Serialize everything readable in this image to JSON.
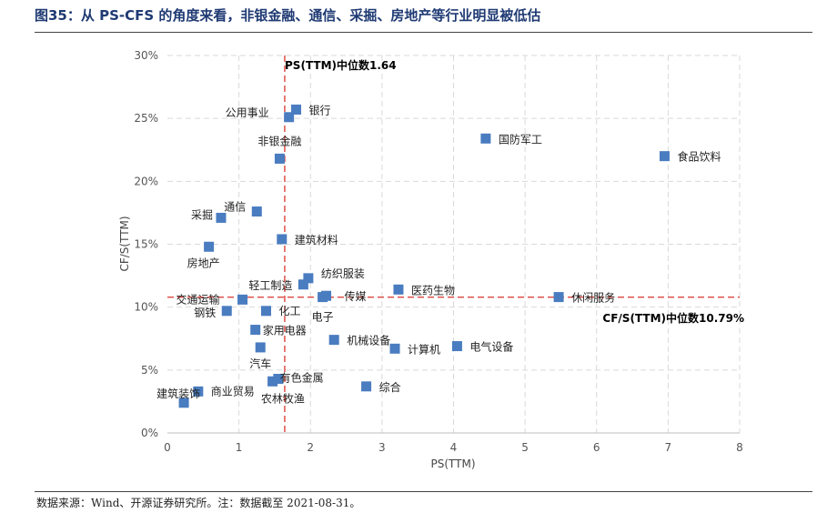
{
  "figure": {
    "title": "图35：从 PS-CFS 的角度来看，非银金融、通信、采掘、房地产等行业明显被低估",
    "source": "数据来源：Wind、开源证券研究所。注：数据截至 2021-08-31。"
  },
  "colors": {
    "marker": "#4a7cc0",
    "median": "#d9342b",
    "grid": "#d9d9d9",
    "title": "#1f3a73"
  },
  "chart_data": {
    "type": "scatter",
    "xlabel": "PS(TTM)",
    "ylabel": "CF/S(TTM)",
    "xlim": [
      0,
      8
    ],
    "ylim": [
      0,
      30
    ],
    "x_ticks": [
      "0",
      "1",
      "2",
      "3",
      "4",
      "5",
      "6",
      "7",
      "8"
    ],
    "y_ticks": [
      "0%",
      "5%",
      "10%",
      "15%",
      "20%",
      "25%",
      "30%"
    ],
    "grid": "dashed",
    "median_x": {
      "value": 1.64,
      "label": "PS(TTM)中位数1.64"
    },
    "median_y": {
      "value": 10.79,
      "label": "CF/S(TTM)中位数10.79%"
    },
    "points": [
      {
        "name": "银行",
        "x": 1.8,
        "y": 25.7
      },
      {
        "name": "公用事业",
        "x": 1.7,
        "y": 25.1
      },
      {
        "name": "国防军工",
        "x": 4.45,
        "y": 23.4
      },
      {
        "name": "食品饮料",
        "x": 6.95,
        "y": 22.0
      },
      {
        "name": "非银金融",
        "x": 1.57,
        "y": 21.8
      },
      {
        "name": "通信",
        "x": 1.25,
        "y": 17.6
      },
      {
        "name": "采掘",
        "x": 0.75,
        "y": 17.1
      },
      {
        "name": "建筑材料",
        "x": 1.6,
        "y": 15.4
      },
      {
        "name": "房地产",
        "x": 0.58,
        "y": 14.8
      },
      {
        "name": "纺织服装",
        "x": 1.97,
        "y": 12.3
      },
      {
        "name": "轻工制造",
        "x": 1.9,
        "y": 11.8
      },
      {
        "name": "医药生物",
        "x": 3.23,
        "y": 11.4
      },
      {
        "name": "传媒",
        "x": 2.22,
        "y": 10.9
      },
      {
        "name": "电子",
        "x": 2.17,
        "y": 10.8
      },
      {
        "name": "休闲服务",
        "x": 5.47,
        "y": 10.8
      },
      {
        "name": "交通运输",
        "x": 1.05,
        "y": 10.6
      },
      {
        "name": "钢铁",
        "x": 0.83,
        "y": 9.7
      },
      {
        "name": "化工",
        "x": 1.38,
        "y": 9.7
      },
      {
        "name": "家用电器",
        "x": 1.23,
        "y": 8.2
      },
      {
        "name": "机械设备",
        "x": 2.33,
        "y": 7.4
      },
      {
        "name": "计算机",
        "x": 3.18,
        "y": 6.7
      },
      {
        "name": "电气设备",
        "x": 4.05,
        "y": 6.9
      },
      {
        "name": "汽车",
        "x": 1.3,
        "y": 6.8
      },
      {
        "name": "有色金属",
        "x": 1.47,
        "y": 4.1
      },
      {
        "name": "农林牧渔",
        "x": 1.55,
        "y": 4.3
      },
      {
        "name": "综合",
        "x": 2.78,
        "y": 3.7
      },
      {
        "name": "商业贸易",
        "x": 0.43,
        "y": 3.3
      },
      {
        "name": "建筑装饰",
        "x": 0.23,
        "y": 2.4
      }
    ]
  }
}
